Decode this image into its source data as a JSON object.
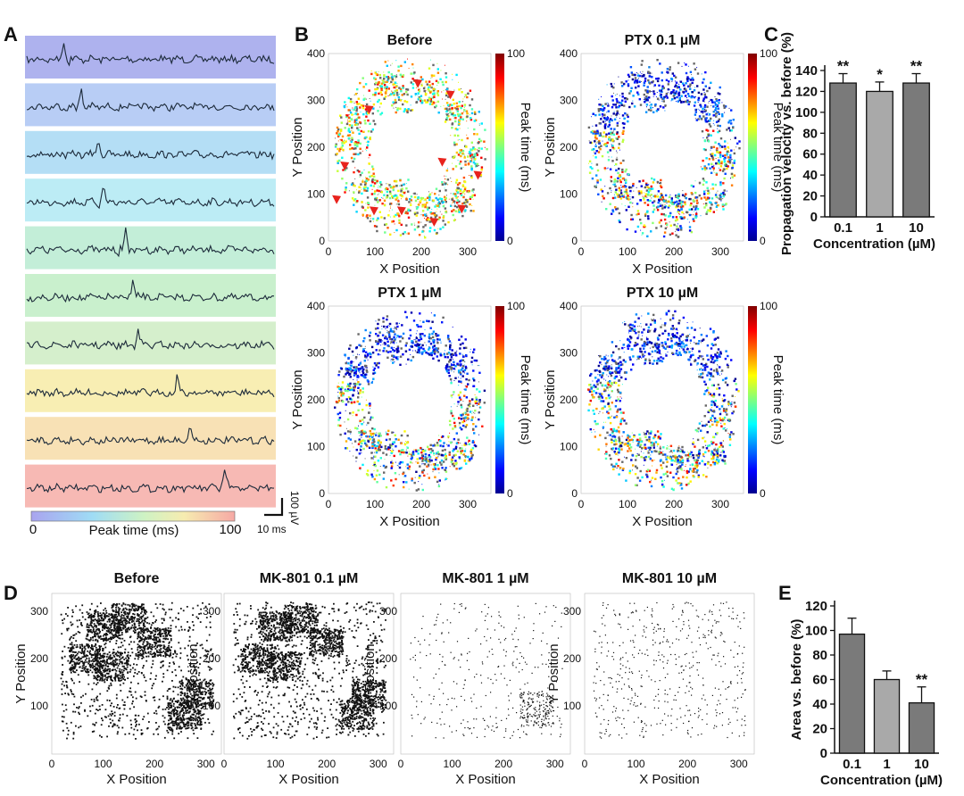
{
  "panels": {
    "A": "A",
    "B": "B",
    "C": "C",
    "D": "D",
    "E": "E"
  },
  "colors": {
    "bar_dark": "#7a7a7a",
    "bar_light": "#a9a9a9",
    "marker": "#e8231d",
    "trace": "#1c2a3a"
  },
  "panel_a": {
    "trace_colors": [
      "#aeb2ee",
      "#b8cdf5",
      "#b4def5",
      "#bcecf5",
      "#c3eed8",
      "#c9f0cd",
      "#d5efcc",
      "#f8eeb3",
      "#f8e1b5",
      "#f7b9b4"
    ],
    "spike_positions": [
      0.15,
      0.22,
      0.29,
      0.31,
      0.4,
      0.43,
      0.45,
      0.61,
      0.66,
      0.8
    ],
    "colorbar": {
      "min": "0",
      "max": "100",
      "label": "Peak time (ms)"
    },
    "scalebar": {
      "v": "100 µV",
      "t": "10 ms"
    }
  },
  "panel_b": {
    "subplots": [
      {
        "title": "Before",
        "markers": true
      },
      {
        "title": "PTX 0.1 µM",
        "markers": false
      },
      {
        "title": "PTX 1 µM",
        "markers": false
      },
      {
        "title": "PTX 10 µM",
        "markers": false
      }
    ],
    "xlabel": "X Position",
    "ylabel": "Y Position",
    "xticks": [
      "0",
      "100",
      "200",
      "300"
    ],
    "yticks": [
      "400",
      "300",
      "200",
      "100",
      "0"
    ],
    "colorbar_label": "Peak time (ms)",
    "colorbar_ticks": [
      "100",
      "0"
    ]
  },
  "panel_d": {
    "subplots": [
      {
        "title": "Before",
        "density": 1.0
      },
      {
        "title": "MK-801 0.1 µM",
        "density": 1.0
      },
      {
        "title": "MK-801 1 µM",
        "density": 0.45
      },
      {
        "title": "MK-801 10 µM",
        "density": 0.2
      }
    ],
    "xlabel": "X Position",
    "ylabel": "Y Position",
    "xticks": [
      "0",
      "100",
      "200",
      "300"
    ],
    "yticks": [
      "300",
      "200",
      "100"
    ]
  },
  "chart_data": [
    {
      "type": "bar",
      "panel": "C",
      "categories": [
        "0.1",
        "1",
        "10"
      ],
      "values": [
        128,
        120,
        128
      ],
      "errors": [
        9,
        9,
        9
      ],
      "significance": [
        "**",
        "*",
        "**"
      ],
      "ylabel": "Propagation velocity vs. before (%)",
      "xlabel": "Concentration (µM)",
      "ylim": [
        0,
        140
      ],
      "yticks": [
        0,
        20,
        40,
        60,
        80,
        100,
        120,
        140
      ]
    },
    {
      "type": "bar",
      "panel": "E",
      "categories": [
        "0.1",
        "1",
        "10"
      ],
      "values": [
        97,
        60,
        41
      ],
      "errors": [
        13,
        7,
        13
      ],
      "significance": [
        "",
        "",
        "**"
      ],
      "ylabel": "Area vs. before (%)",
      "xlabel": "Concentration (µM)",
      "ylim": [
        0,
        120
      ],
      "yticks": [
        0,
        20,
        40,
        60,
        80,
        100,
        120
      ]
    }
  ]
}
